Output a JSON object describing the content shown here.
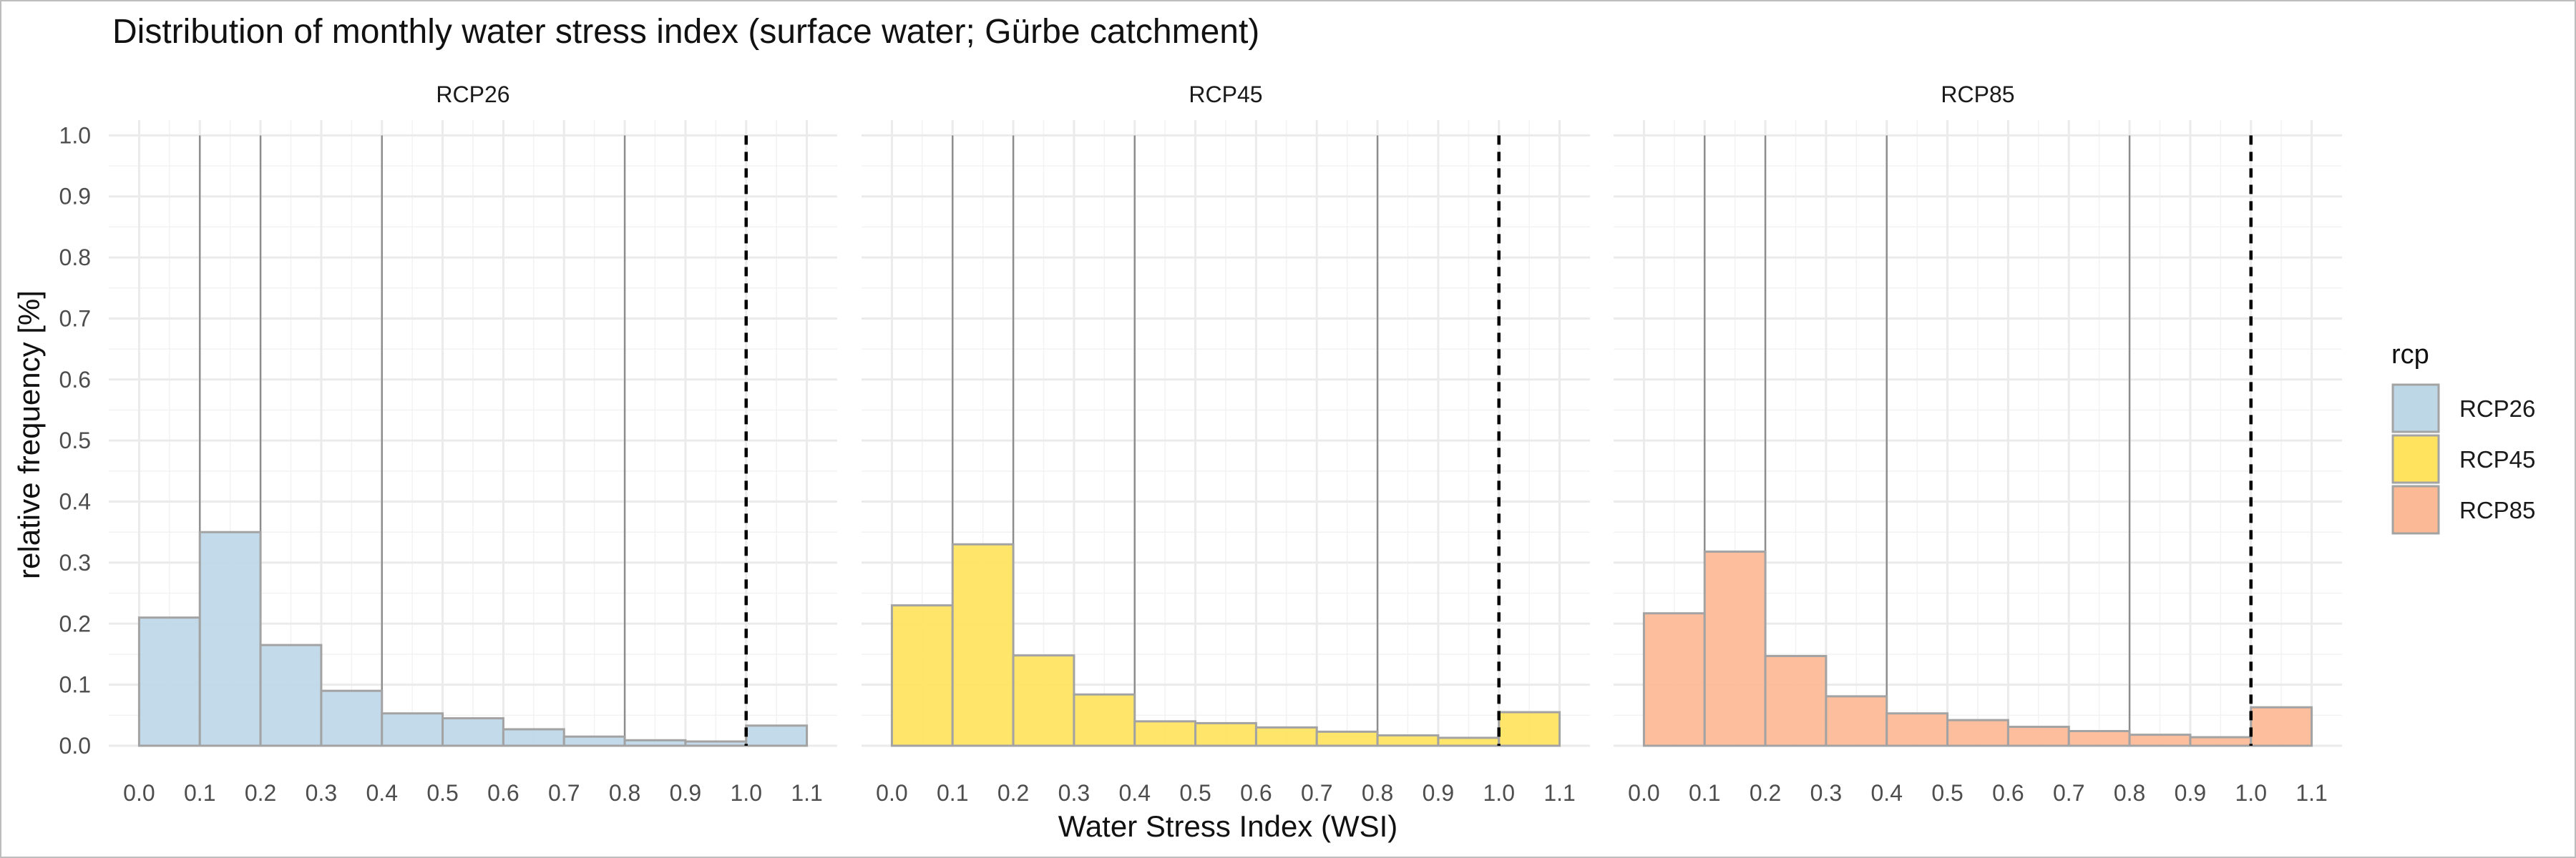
{
  "chart_data": {
    "type": "bar",
    "title": "Distribution of monthly water stress index (surface water; Gürbe catchment)",
    "xlabel": "Water Stress Index (WSI)",
    "ylabel": "relative frequency [%]",
    "xlim": [
      0.0,
      1.1
    ],
    "ylim": [
      0.0,
      1.0
    ],
    "x_ticks": [
      "0.0",
      "0.1",
      "0.2",
      "0.3",
      "0.4",
      "0.5",
      "0.6",
      "0.7",
      "0.8",
      "0.9",
      "1.0",
      "1.1"
    ],
    "y_ticks": [
      "0.0",
      "0.1",
      "0.2",
      "0.3",
      "0.4",
      "0.5",
      "0.6",
      "0.7",
      "0.8",
      "0.9",
      "1.0"
    ],
    "bin_edges": [
      0.0,
      0.1,
      0.2,
      0.3,
      0.4,
      0.5,
      0.6,
      0.7,
      0.8,
      0.9,
      1.0,
      1.1
    ],
    "class_lines": [
      0.1,
      0.2,
      0.4,
      0.8
    ],
    "threshold": 1.0,
    "grid": true,
    "legend": {
      "title": "rcp",
      "position": "right",
      "entries": [
        {
          "label": "RCP26",
          "color": "#bdd7e7"
        },
        {
          "label": "RCP45",
          "color": "#ffe35e"
        },
        {
          "label": "RCP85",
          "color": "#fcb996"
        }
      ]
    },
    "series": [
      {
        "name": "RCP26",
        "color": "#bdd7e7",
        "values": [
          0.21,
          0.35,
          0.165,
          0.09,
          0.053,
          0.045,
          0.027,
          0.015,
          0.009,
          0.007,
          0.033
        ]
      },
      {
        "name": "RCP45",
        "color": "#ffe35e",
        "values": [
          0.23,
          0.33,
          0.148,
          0.084,
          0.04,
          0.037,
          0.03,
          0.023,
          0.017,
          0.013,
          0.055
        ]
      },
      {
        "name": "RCP85",
        "color": "#fcb996",
        "values": [
          0.217,
          0.318,
          0.147,
          0.081,
          0.053,
          0.042,
          0.031,
          0.024,
          0.018,
          0.014,
          0.063
        ]
      }
    ]
  }
}
